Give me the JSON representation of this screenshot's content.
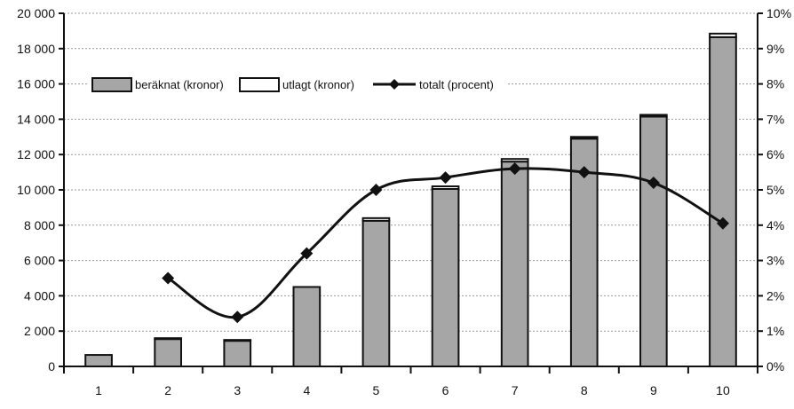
{
  "chart_data": {
    "type": "bar",
    "categories": [
      "1",
      "2",
      "3",
      "4",
      "5",
      "6",
      "7",
      "8",
      "9",
      "10"
    ],
    "series": [
      {
        "name": "beräknat (kronor)",
        "kind": "stacked-bar",
        "color": "#a6a6a6",
        "values": [
          650,
          1550,
          1450,
          4500,
          8250,
          10050,
          11600,
          12900,
          14150,
          18650
        ]
      },
      {
        "name": "utlagt (kronor)",
        "kind": "stacked-bar",
        "color": "#ffffff",
        "values": [
          0,
          50,
          50,
          0,
          150,
          150,
          150,
          100,
          100,
          200
        ]
      },
      {
        "name": "totalt (procent)",
        "kind": "line",
        "axis": "right",
        "color": "#111111",
        "marker": "diamond",
        "smoothed": true,
        "values": [
          null,
          2.5,
          1.4,
          3.2,
          5.0,
          5.35,
          5.6,
          5.5,
          5.2,
          4.05
        ]
      }
    ],
    "y_left": {
      "min": 0,
      "max": 20000,
      "ticks": [
        0,
        2000,
        4000,
        6000,
        8000,
        10000,
        12000,
        14000,
        16000,
        18000,
        20000
      ],
      "tick_labels": [
        "0",
        "2 000",
        "4 000",
        "6 000",
        "8 000",
        "10 000",
        "12 000",
        "14 000",
        "16 000",
        "18 000",
        "20 000"
      ]
    },
    "y_right": {
      "min": 0,
      "max": 10,
      "ticks": [
        0,
        1,
        2,
        3,
        4,
        5,
        6,
        7,
        8,
        9,
        10
      ],
      "tick_labels": [
        "0%",
        "1%",
        "2%",
        "3%",
        "4%",
        "5%",
        "6%",
        "7%",
        "8%",
        "9%",
        "10%"
      ]
    },
    "title": "",
    "xlabel": "",
    "ylabel": "",
    "grid": true,
    "legend_position": "top-left"
  }
}
